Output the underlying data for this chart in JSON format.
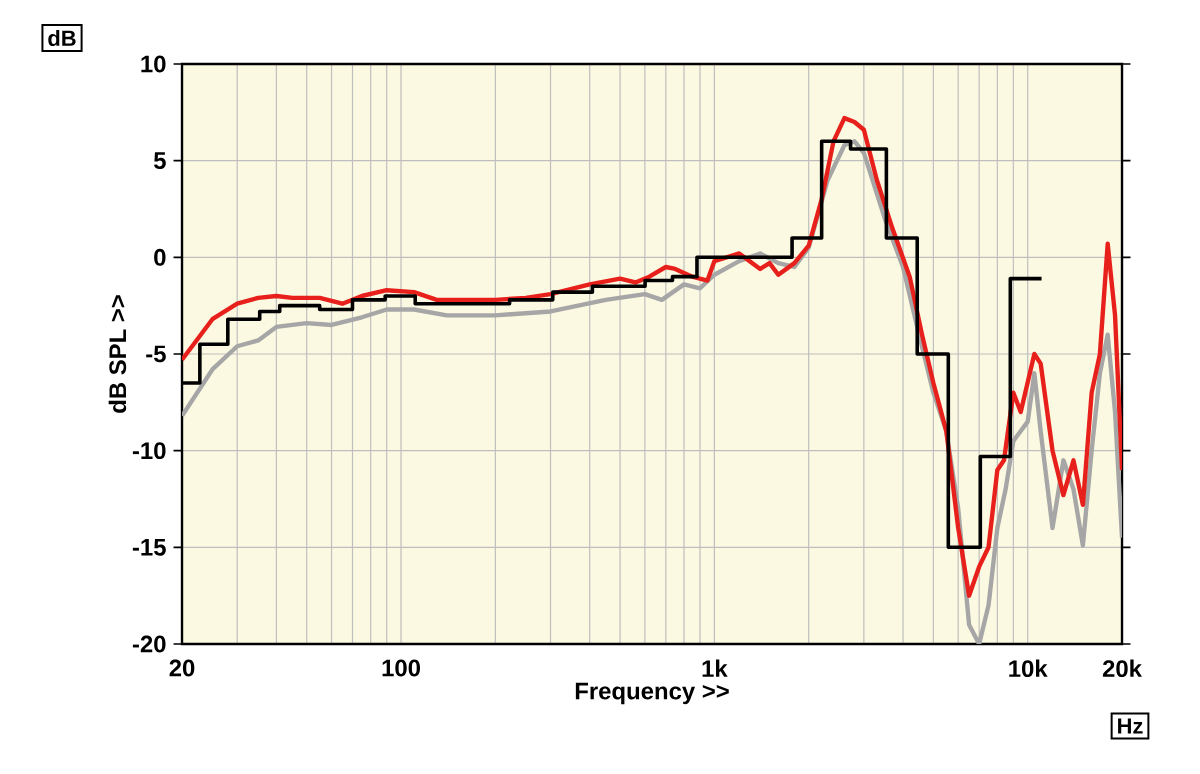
{
  "chart_data": {
    "type": "line",
    "xlabel": "Frequency >>",
    "ylabel": "dB SPL >>",
    "annotations": [
      "dB",
      "Hz"
    ],
    "log": "x",
    "grid": true,
    "marker": "none",
    "line_style": "solid",
    "xlim": [
      20,
      20000
    ],
    "ylim": [
      -20,
      10
    ],
    "xticks": [
      20,
      {
        "value": 30,
        "label": null
      },
      {
        "value": 40,
        "label": null
      },
      {
        "value": 50,
        "label": null
      },
      {
        "value": 60,
        "label": null
      },
      {
        "value": 70,
        "label": null
      },
      {
        "value": 80,
        "label": null
      },
      {
        "value": 90,
        "label": null
      },
      100,
      {
        "value": 200,
        "label": null
      },
      {
        "value": 300,
        "label": null
      },
      {
        "value": 400,
        "label": null
      },
      {
        "value": 500,
        "label": null
      },
      {
        "value": 600,
        "label": null
      },
      {
        "value": 700,
        "label": null
      },
      {
        "value": 800,
        "label": null
      },
      {
        "value": 900,
        "label": null
      },
      {
        "value": 1000,
        "label": "1k"
      },
      {
        "value": 2000,
        "label": null
      },
      {
        "value": 3000,
        "label": null
      },
      {
        "value": 4000,
        "label": null
      },
      {
        "value": 5000,
        "label": null
      },
      {
        "value": 6000,
        "label": null
      },
      {
        "value": 7000,
        "label": null
      },
      {
        "value": 8000,
        "label": null
      },
      {
        "value": 9000,
        "label": null
      },
      {
        "value": 10000,
        "label": "10k"
      },
      {
        "value": 20000,
        "label": "20k"
      }
    ],
    "yticks": [
      -20,
      -15,
      -10,
      -5,
      0,
      5,
      10
    ],
    "series": [
      {
        "color": "#a6a6a6",
        "x": [
          20,
          25,
          30,
          35,
          40,
          50,
          60,
          75,
          90,
          110,
          140,
          200,
          300,
          450,
          600,
          680,
          800,
          900,
          1000,
          1200,
          1400,
          1600,
          1800,
          2000,
          2300,
          2600,
          2800,
          3000,
          3500,
          4000,
          4500,
          5000,
          5500,
          6000,
          6500,
          7000,
          7500,
          8000,
          8500,
          9000,
          10000,
          10500,
          11000,
          12000,
          13000,
          14000,
          15000,
          16000,
          17000,
          18000,
          19000,
          20000
        ],
        "values": [
          -8.2,
          -5.8,
          -4.6,
          -4.3,
          -3.6,
          -3.4,
          -3.5,
          -3.1,
          -2.7,
          -2.7,
          -3.0,
          -3.0,
          -2.8,
          -2.2,
          -1.9,
          -2.2,
          -1.4,
          -1.6,
          -0.9,
          -0.2,
          0.2,
          -0.3,
          -0.5,
          0.5,
          4,
          5.8,
          6.0,
          5.4,
          2,
          -0.5,
          -4,
          -7,
          -9,
          -13,
          -19,
          -20,
          -18,
          -14,
          -12,
          -9.5,
          -8.5,
          -6,
          -9,
          -14,
          -10.5,
          -12,
          -14.9,
          -10,
          -6,
          -4,
          -8,
          -14.5
        ]
      },
      {
        "color": "#e8201c",
        "x": [
          20,
          25,
          30,
          35,
          40,
          45,
          55,
          65,
          75,
          90,
          110,
          130,
          200,
          250,
          300,
          400,
          500,
          560,
          620,
          700,
          750,
          850,
          950,
          1000,
          1200,
          1400,
          1500,
          1600,
          1800,
          2000,
          2200,
          2400,
          2600,
          2800,
          3000,
          3300,
          3700,
          4200,
          4600,
          5000,
          5500,
          6000,
          6500,
          7000,
          7500,
          8000,
          8400,
          9000,
          9500,
          10500,
          11000,
          12000,
          13000,
          14000,
          15000,
          16000,
          17000,
          18000,
          19000,
          20000
        ],
        "values": [
          -5.3,
          -3.2,
          -2.4,
          -2.1,
          -2.0,
          -2.1,
          -2.1,
          -2.4,
          -2.0,
          -1.7,
          -1.8,
          -2.2,
          -2.2,
          -2.1,
          -1.9,
          -1.4,
          -1.1,
          -1.3,
          -1.0,
          -0.5,
          -0.6,
          -1.0,
          -1.2,
          -0.2,
          0.2,
          -0.6,
          -0.3,
          -0.9,
          -0.3,
          0.6,
          3,
          6,
          7.2,
          7.0,
          6.6,
          4,
          1.5,
          -1,
          -4,
          -6.5,
          -9,
          -14,
          -17.5,
          -16,
          -15,
          -11,
          -10.5,
          -7,
          -8,
          -5,
          -5.5,
          -10,
          -12.3,
          -10.5,
          -12.8,
          -7,
          -5,
          0.7,
          -3,
          -11
        ]
      },
      {
        "type": "step",
        "color": "#000000",
        "x": [
          20,
          22.8,
          28,
          35.4,
          41,
          55,
          70,
          89,
          111,
          222,
          305,
          408,
          601,
          735,
          880,
          1770,
          2200,
          2720,
          3540,
          4440,
          5580,
          7060,
          8800,
          11070
        ],
        "values": [
          -6.5,
          -4.5,
          -3.2,
          -2.8,
          -2.5,
          -2.7,
          -2.2,
          -2.0,
          -2.4,
          -2.2,
          -1.8,
          -1.5,
          -1.2,
          -1.0,
          0,
          1,
          6,
          5.6,
          1,
          -5,
          -15,
          -10.3,
          -1.1,
          -1.1
        ]
      }
    ]
  }
}
